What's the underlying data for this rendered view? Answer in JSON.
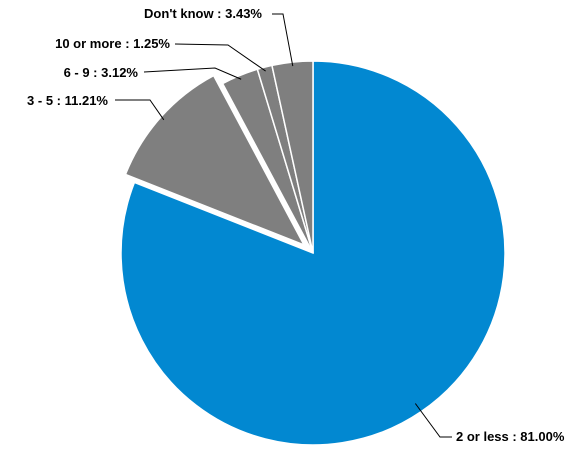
{
  "chart_data": {
    "type": "pie",
    "start_angle_deg": 0,
    "direction": "clockwise",
    "exploded": "3 - 5",
    "slices": [
      {
        "label": "2 or less",
        "value": 81.0,
        "display": "2 or less : 81.00%",
        "color": "#0288D1"
      },
      {
        "label": "3 - 5",
        "value": 11.21,
        "display": "3 - 5 : 11.21%",
        "color": "#7F7F7F"
      },
      {
        "label": "6 - 9",
        "value": 3.12,
        "display": "6 - 9 : 3.12%",
        "color": "#7F7F7F"
      },
      {
        "label": "10 or more",
        "value": 1.25,
        "display": "10 or more : 1.25%",
        "color": "#7F7F7F"
      },
      {
        "label": "Don't know",
        "value": 3.43,
        "display": "Don't know : 3.43%",
        "color": "#7F7F7F"
      }
    ],
    "slice_border_color": "#ffffff",
    "label_color": "#000000",
    "leader_line_color": "#000000"
  }
}
